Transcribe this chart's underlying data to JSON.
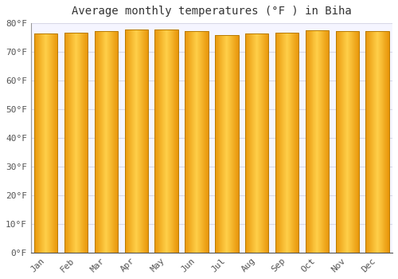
{
  "title": "Average monthly temperatures (°F ) in Biha",
  "months": [
    "Jan",
    "Feb",
    "Mar",
    "Apr",
    "May",
    "Jun",
    "Jul",
    "Aug",
    "Sep",
    "Oct",
    "Nov",
    "Dec"
  ],
  "values": [
    76.3,
    76.8,
    77.2,
    77.7,
    77.9,
    77.2,
    75.9,
    76.3,
    76.8,
    77.5,
    77.3,
    77.2
  ],
  "ylim": [
    0,
    80
  ],
  "yticks": [
    0,
    10,
    20,
    30,
    40,
    50,
    60,
    70,
    80
  ],
  "ytick_labels": [
    "0°F",
    "10°F",
    "20°F",
    "30°F",
    "40°F",
    "50°F",
    "60°F",
    "70°F",
    "80°F"
  ],
  "bar_color_edge": "#E8960A",
  "bar_color_center": "#FFD04A",
  "bar_edge_stroke": "#B87A00",
  "background_color": "#FFFFFF",
  "plot_bg_color": "#F5F5FF",
  "grid_color": "#D8D8E8",
  "title_fontsize": 10,
  "tick_fontsize": 8,
  "bar_width": 0.78,
  "gradient_steps": 60
}
